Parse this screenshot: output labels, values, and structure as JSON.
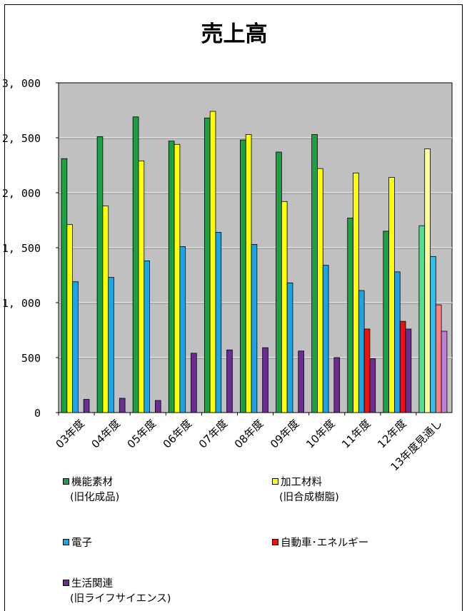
{
  "chart_data": {
    "type": "bar",
    "title": "売上高",
    "xlabel": "",
    "ylabel": "",
    "ylim": [
      0,
      3000
    ],
    "yticks": [
      0,
      500,
      1000,
      1500,
      2000,
      2500,
      3000
    ],
    "ytick_labels": [
      "0",
      "500",
      "1, 000",
      "1, 500",
      "2, 000",
      "2, 500",
      "3, 000"
    ],
    "grid": true,
    "categories": [
      "03年度",
      "04年度",
      "05年度",
      "06年度",
      "07年度",
      "08年度",
      "09年度",
      "10年度",
      "11年度",
      "12年度",
      "13年度見通し"
    ],
    "series": [
      {
        "name": "機能素材",
        "name_sub": "(旧化成品)",
        "color": "#1aa142",
        "light_color": "#4fe28a",
        "values": [
          2310,
          2510,
          2690,
          2470,
          2680,
          2480,
          2370,
          2530,
          1770,
          1650,
          1700
        ]
      },
      {
        "name": "加工材料",
        "name_sub": "(旧合成樹脂)",
        "color": "#ffff00",
        "light_color": "#ffff99",
        "values": [
          1710,
          1880,
          2290,
          2440,
          2740,
          2530,
          1920,
          2220,
          2180,
          2140,
          2400
        ]
      },
      {
        "name": "電子",
        "name_sub": "",
        "color": "#1aa6e6",
        "light_color": "#2ec0f0",
        "values": [
          1190,
          1230,
          1380,
          1510,
          1640,
          1530,
          1180,
          1340,
          1110,
          1280,
          1420
        ]
      },
      {
        "name": "自動車･エネルギー",
        "name_sub": "",
        "color": "#ee1111",
        "light_color": "#ff8080",
        "values": [
          null,
          null,
          null,
          null,
          null,
          null,
          null,
          null,
          760,
          830,
          980
        ]
      },
      {
        "name": "生活関連",
        "name_sub": "(旧ライフサイエンス)",
        "color": "#6a2f8e",
        "light_color": "#c080d8",
        "values": [
          120,
          130,
          110,
          540,
          570,
          590,
          560,
          500,
          490,
          760,
          740
        ]
      }
    ],
    "legend_position": "bottom",
    "plot_background": "#c0c0c0"
  }
}
